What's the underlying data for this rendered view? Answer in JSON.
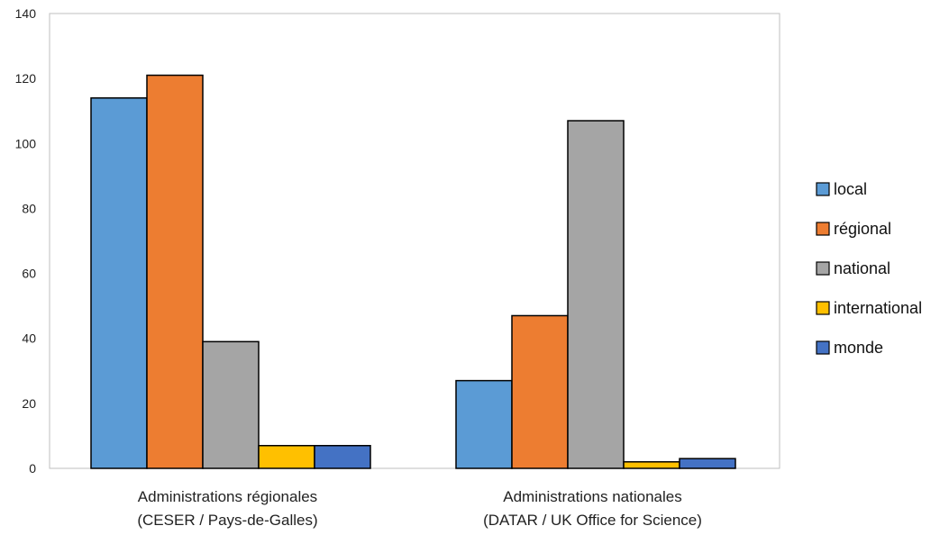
{
  "chart_data": {
    "type": "bar",
    "categories": [
      [
        "Administrations régionales",
        "(CESER / Pays-de-Galles)"
      ],
      [
        "Administrations nationales",
        "(DATAR / UK Office for Science)"
      ]
    ],
    "series": [
      {
        "name": "local",
        "values": [
          114,
          27
        ],
        "color": "#5b9bd5"
      },
      {
        "name": "régional",
        "values": [
          121,
          47
        ],
        "color": "#ed7d31"
      },
      {
        "name": "national",
        "values": [
          39,
          107
        ],
        "color": "#a5a5a5"
      },
      {
        "name": "international",
        "values": [
          7,
          2
        ],
        "color": "#ffc000"
      },
      {
        "name": "monde",
        "values": [
          7,
          3
        ],
        "color": "#4472c4"
      }
    ],
    "ylim": [
      0,
      140
    ],
    "yticks": [
      0,
      20,
      40,
      60,
      80,
      100,
      120,
      140
    ],
    "grid": false,
    "legend_position": "right",
    "title": "",
    "xlabel": "",
    "ylabel": ""
  }
}
